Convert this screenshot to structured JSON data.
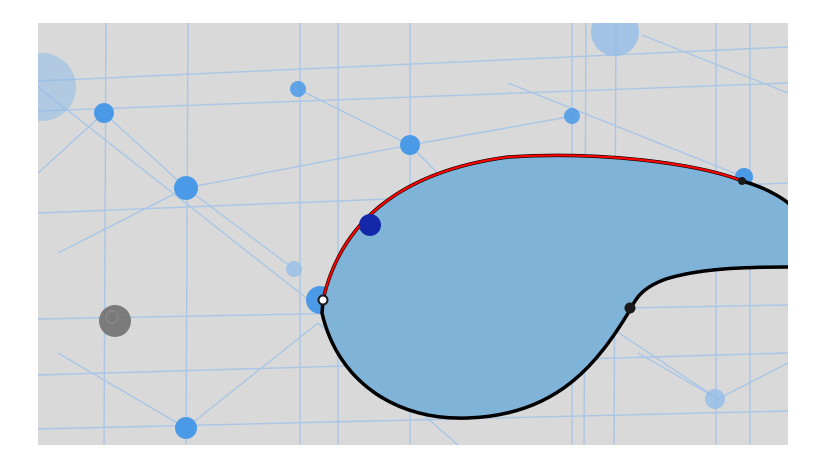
{
  "canvas": {
    "background_color": "#d9d9d9",
    "page_background_color": "#ffffff"
  },
  "grid": {
    "line_color": "#a9c6e6",
    "node_color": "#4a9ae8",
    "node_color_far": "#8fbbe8"
  },
  "curve": {
    "fill_color": "#7fb3d8",
    "outline_color": "#000000",
    "selected_segment_color": "#ff0000"
  },
  "control_points": {
    "selected_handle_color": "#1328a8",
    "anchor_color": "#1a1a1a"
  },
  "cursor_marker": {
    "color": "#707070"
  }
}
